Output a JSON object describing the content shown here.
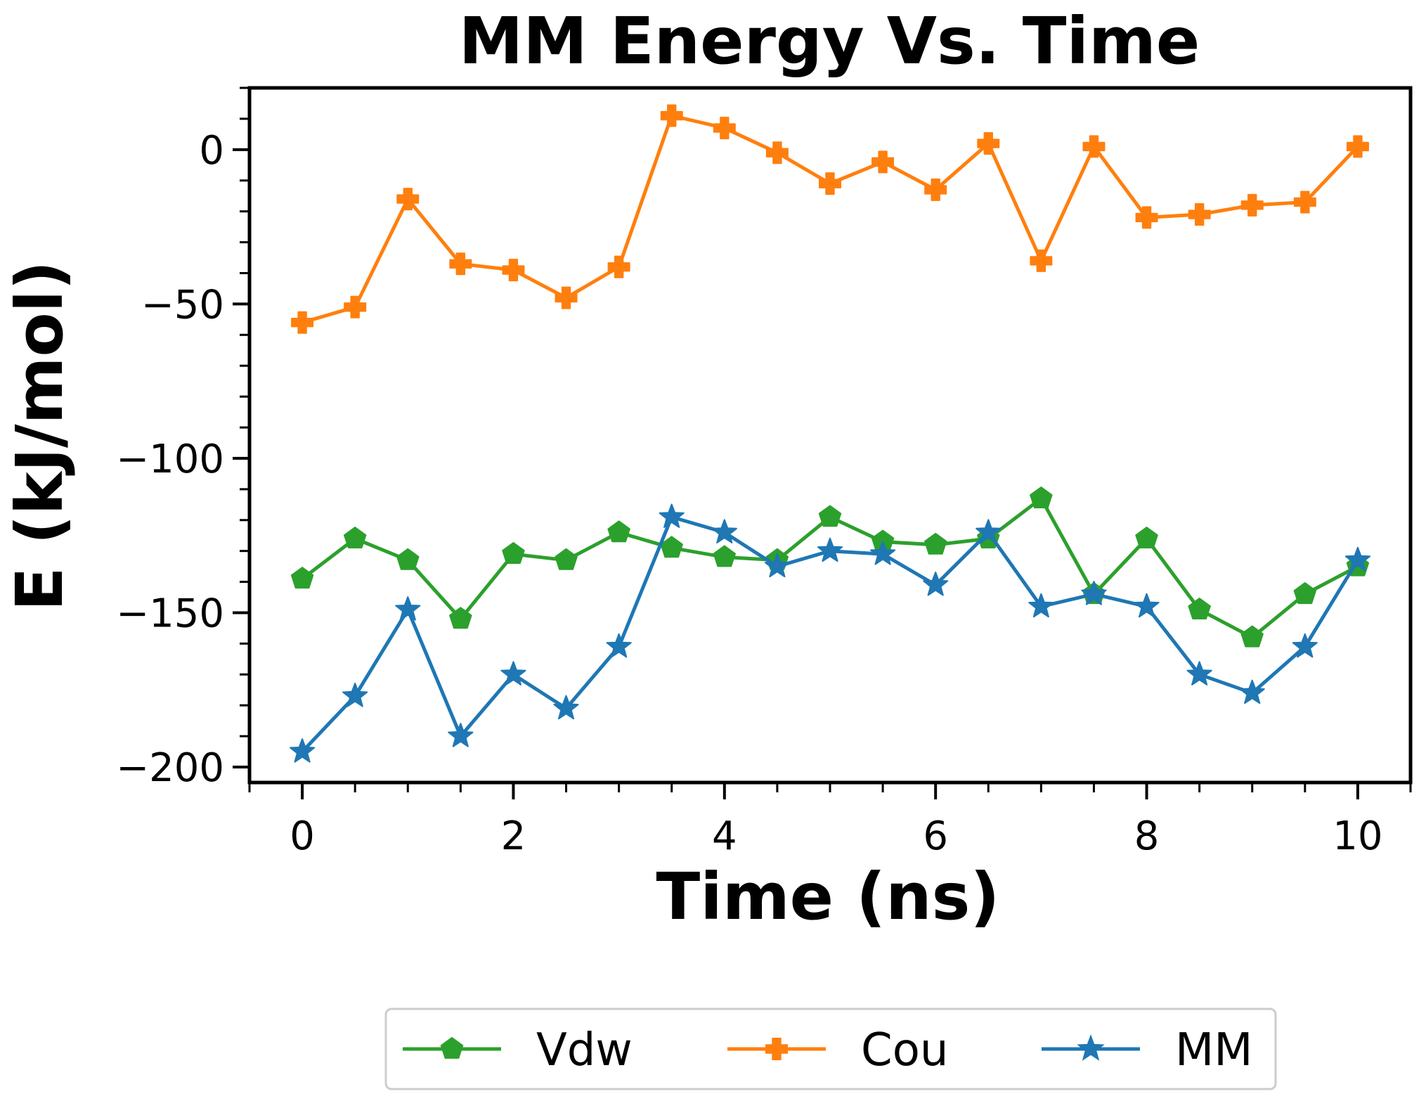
{
  "chart_data": {
    "type": "line",
    "title": "MM Energy Vs. Time",
    "xlabel": "Time (ns)",
    "ylabel": "E (kJ/mol)",
    "xlim": [
      -0.5,
      10.5
    ],
    "ylim": [
      -205,
      20
    ],
    "x_ticks": [
      0,
      2,
      4,
      6,
      8,
      10
    ],
    "x_tick_labels": [
      "0",
      "2",
      "4",
      "6",
      "8",
      "10"
    ],
    "x_minor_step": 0.5,
    "y_ticks": [
      0,
      -50,
      -100,
      -150,
      -200
    ],
    "y_tick_labels": [
      "0",
      "−50",
      "−100",
      "−150",
      "−200"
    ],
    "y_minor_step": 10,
    "grid": false,
    "legend_position": "bottom-center",
    "x": [
      0,
      0.5,
      1,
      1.5,
      2,
      2.5,
      3,
      3.5,
      4,
      4.5,
      5,
      5.5,
      6,
      6.5,
      7,
      7.5,
      8,
      8.5,
      9,
      9.5,
      10
    ],
    "series": [
      {
        "name": "Vdw",
        "color": "#2ca02c",
        "marker": "pentagon",
        "values": [
          -139,
          -126,
          -133,
          -152,
          -131,
          -133,
          -124,
          -129,
          -132,
          -133,
          -119,
          -127,
          -128,
          -126,
          -113,
          -144,
          -126,
          -149,
          -158,
          -144,
          -135
        ]
      },
      {
        "name": "Cou",
        "color": "#ff7f0e",
        "marker": "plus",
        "values": [
          -56,
          -51,
          -16,
          -37,
          -39,
          -48,
          -38,
          11,
          7,
          -1,
          -11,
          -4,
          -13,
          2,
          -36,
          1,
          -22,
          -21,
          -18,
          -17,
          1
        ]
      },
      {
        "name": "MM",
        "color": "#1f77b4",
        "marker": "star",
        "values": [
          -195,
          -177,
          -149,
          -190,
          -170,
          -181,
          -161,
          -119,
          -124,
          -135,
          -130,
          -131,
          -141,
          -124,
          -148,
          -144,
          -148,
          -170,
          -176,
          -161,
          -133
        ]
      }
    ]
  }
}
